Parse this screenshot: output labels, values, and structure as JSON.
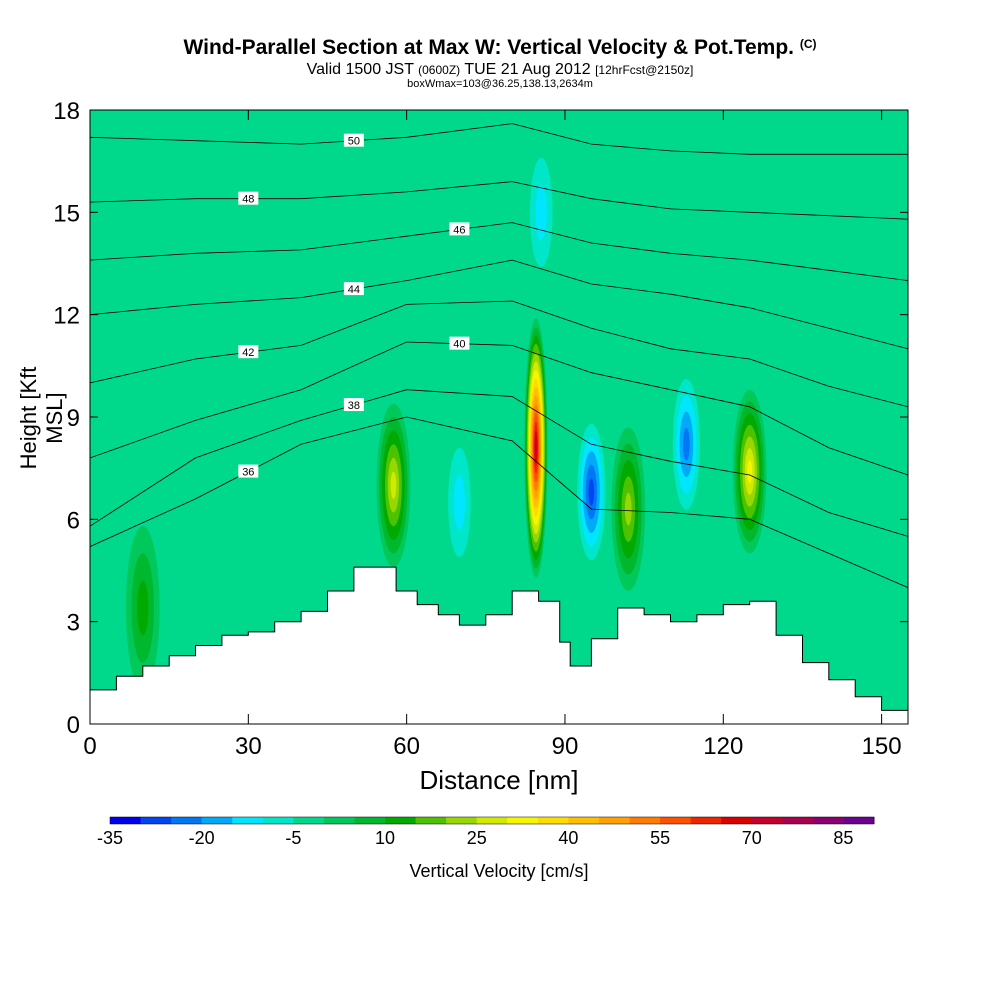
{
  "header": {
    "title": "Wind-Parallel Section at Max W: Vertical Velocity & Pot.Temp.",
    "copyright": "(C)",
    "valid_prefix": "Valid 1500 JST",
    "valid_utc": "(0600Z)",
    "valid_date": "TUE 21 Aug 2012",
    "forecast": "[12hrFcst@2150z]",
    "box_info": "boxWmax=103@36.25,138.13,2634m"
  },
  "chart_data": {
    "type": "heatmap",
    "xlabel": "Distance [nm]",
    "ylabel": "Height [Kft MSL]",
    "xlim": [
      0,
      155
    ],
    "ylim": [
      0,
      18
    ],
    "x_ticks": [
      0,
      30,
      60,
      90,
      120,
      150
    ],
    "y_ticks": [
      0,
      3,
      6,
      9,
      12,
      15,
      18
    ],
    "colorbar": {
      "label": "Vertical Velocity [cm/s]",
      "tick_labels": [
        "-35",
        "-20",
        "-5",
        "10",
        "25",
        "40",
        "55",
        "70",
        "85"
      ],
      "min": -35,
      "max": 90,
      "step": 5,
      "colors": [
        "#0000ee",
        "#0044f2",
        "#0077f5",
        "#00aaf8",
        "#00e6ff",
        "#00e6c8",
        "#00d98c",
        "#00c85a",
        "#00b82d",
        "#00aa00",
        "#4cc200",
        "#96d800",
        "#d2ea00",
        "#f6f600",
        "#ffdc00",
        "#ffbf00",
        "#ffa200",
        "#ff7c00",
        "#ff5000",
        "#f02400",
        "#dc0000",
        "#c4002c",
        "#aa0050",
        "#8c0073",
        "#6e0090"
      ]
    },
    "terrain_heights_kft": [
      [
        0,
        1.0
      ],
      [
        5,
        1.4
      ],
      [
        10,
        1.7
      ],
      [
        15,
        2.0
      ],
      [
        20,
        2.3
      ],
      [
        25,
        2.6
      ],
      [
        30,
        2.7
      ],
      [
        35,
        3.0
      ],
      [
        40,
        3.3
      ],
      [
        45,
        3.9
      ],
      [
        50,
        4.6
      ],
      [
        55,
        4.6
      ],
      [
        58,
        3.9
      ],
      [
        62,
        3.5
      ],
      [
        66,
        3.2
      ],
      [
        70,
        2.9
      ],
      [
        75,
        3.2
      ],
      [
        80,
        3.9
      ],
      [
        85,
        3.6
      ],
      [
        89,
        2.4
      ],
      [
        91,
        1.7
      ],
      [
        95,
        2.5
      ],
      [
        100,
        3.4
      ],
      [
        105,
        3.2
      ],
      [
        110,
        3.0
      ],
      [
        115,
        3.2
      ],
      [
        120,
        3.5
      ],
      [
        125,
        3.6
      ],
      [
        130,
        2.6
      ],
      [
        135,
        1.8
      ],
      [
        140,
        1.3
      ],
      [
        145,
        0.8
      ],
      [
        150,
        0.4
      ],
      [
        155,
        0.3
      ]
    ],
    "vertical_velocity_features_cm_s": [
      {
        "x": 84.5,
        "y": 8.1,
        "value": 75
      },
      {
        "x": 57.5,
        "y": 7.0,
        "value": 30
      },
      {
        "x": 102,
        "y": 6.3,
        "value": 25
      },
      {
        "x": 125,
        "y": 7.4,
        "value": 35
      },
      {
        "x": 95,
        "y": 6.8,
        "value": -30
      },
      {
        "x": 113,
        "y": 8.2,
        "value": -25
      },
      {
        "x": 70,
        "y": 6.5,
        "value": -15
      },
      {
        "x": 85.5,
        "y": 15.0,
        "value": -15
      },
      {
        "x": 10,
        "y": 3.4,
        "value": 15
      }
    ],
    "theta_isentropes_c": [
      {
        "label": "36",
        "values_kft": [
          5.2,
          6.6,
          8.2,
          9.0,
          8.3,
          6.3,
          6.2,
          6.0,
          5.0,
          4.0
        ]
      },
      {
        "label": "38",
        "values_kft": [
          5.8,
          7.8,
          8.9,
          9.8,
          9.6,
          8.2,
          7.7,
          7.3,
          6.2,
          5.5
        ]
      },
      {
        "label": "40",
        "values_kft": [
          7.8,
          8.9,
          9.8,
          11.2,
          11.1,
          10.3,
          9.8,
          9.3,
          8.1,
          7.3
        ]
      },
      {
        "label": "42",
        "values_kft": [
          10.0,
          10.7,
          11.1,
          12.3,
          12.4,
          11.6,
          11.0,
          10.7,
          9.9,
          9.3
        ]
      },
      {
        "label": "44",
        "values_kft": [
          12.0,
          12.3,
          12.5,
          13.0,
          13.6,
          12.9,
          12.6,
          12.2,
          11.6,
          11.0
        ]
      },
      {
        "label": "46",
        "values_kft": [
          13.6,
          13.8,
          13.9,
          14.3,
          14.7,
          14.1,
          13.8,
          13.6,
          13.3,
          13.0
        ]
      },
      {
        "label": "48",
        "values_kft": [
          15.3,
          15.4,
          15.4,
          15.6,
          15.9,
          15.4,
          15.1,
          15.0,
          14.9,
          14.8
        ]
      },
      {
        "label": "50",
        "values_kft": [
          17.2,
          17.1,
          17.0,
          17.2,
          17.6,
          17.0,
          16.8,
          16.7,
          16.7,
          16.7
        ]
      }
    ],
    "isentrope_x_nm": [
      0,
      20,
      40,
      60,
      80,
      95,
      110,
      125,
      140,
      155
    ]
  }
}
